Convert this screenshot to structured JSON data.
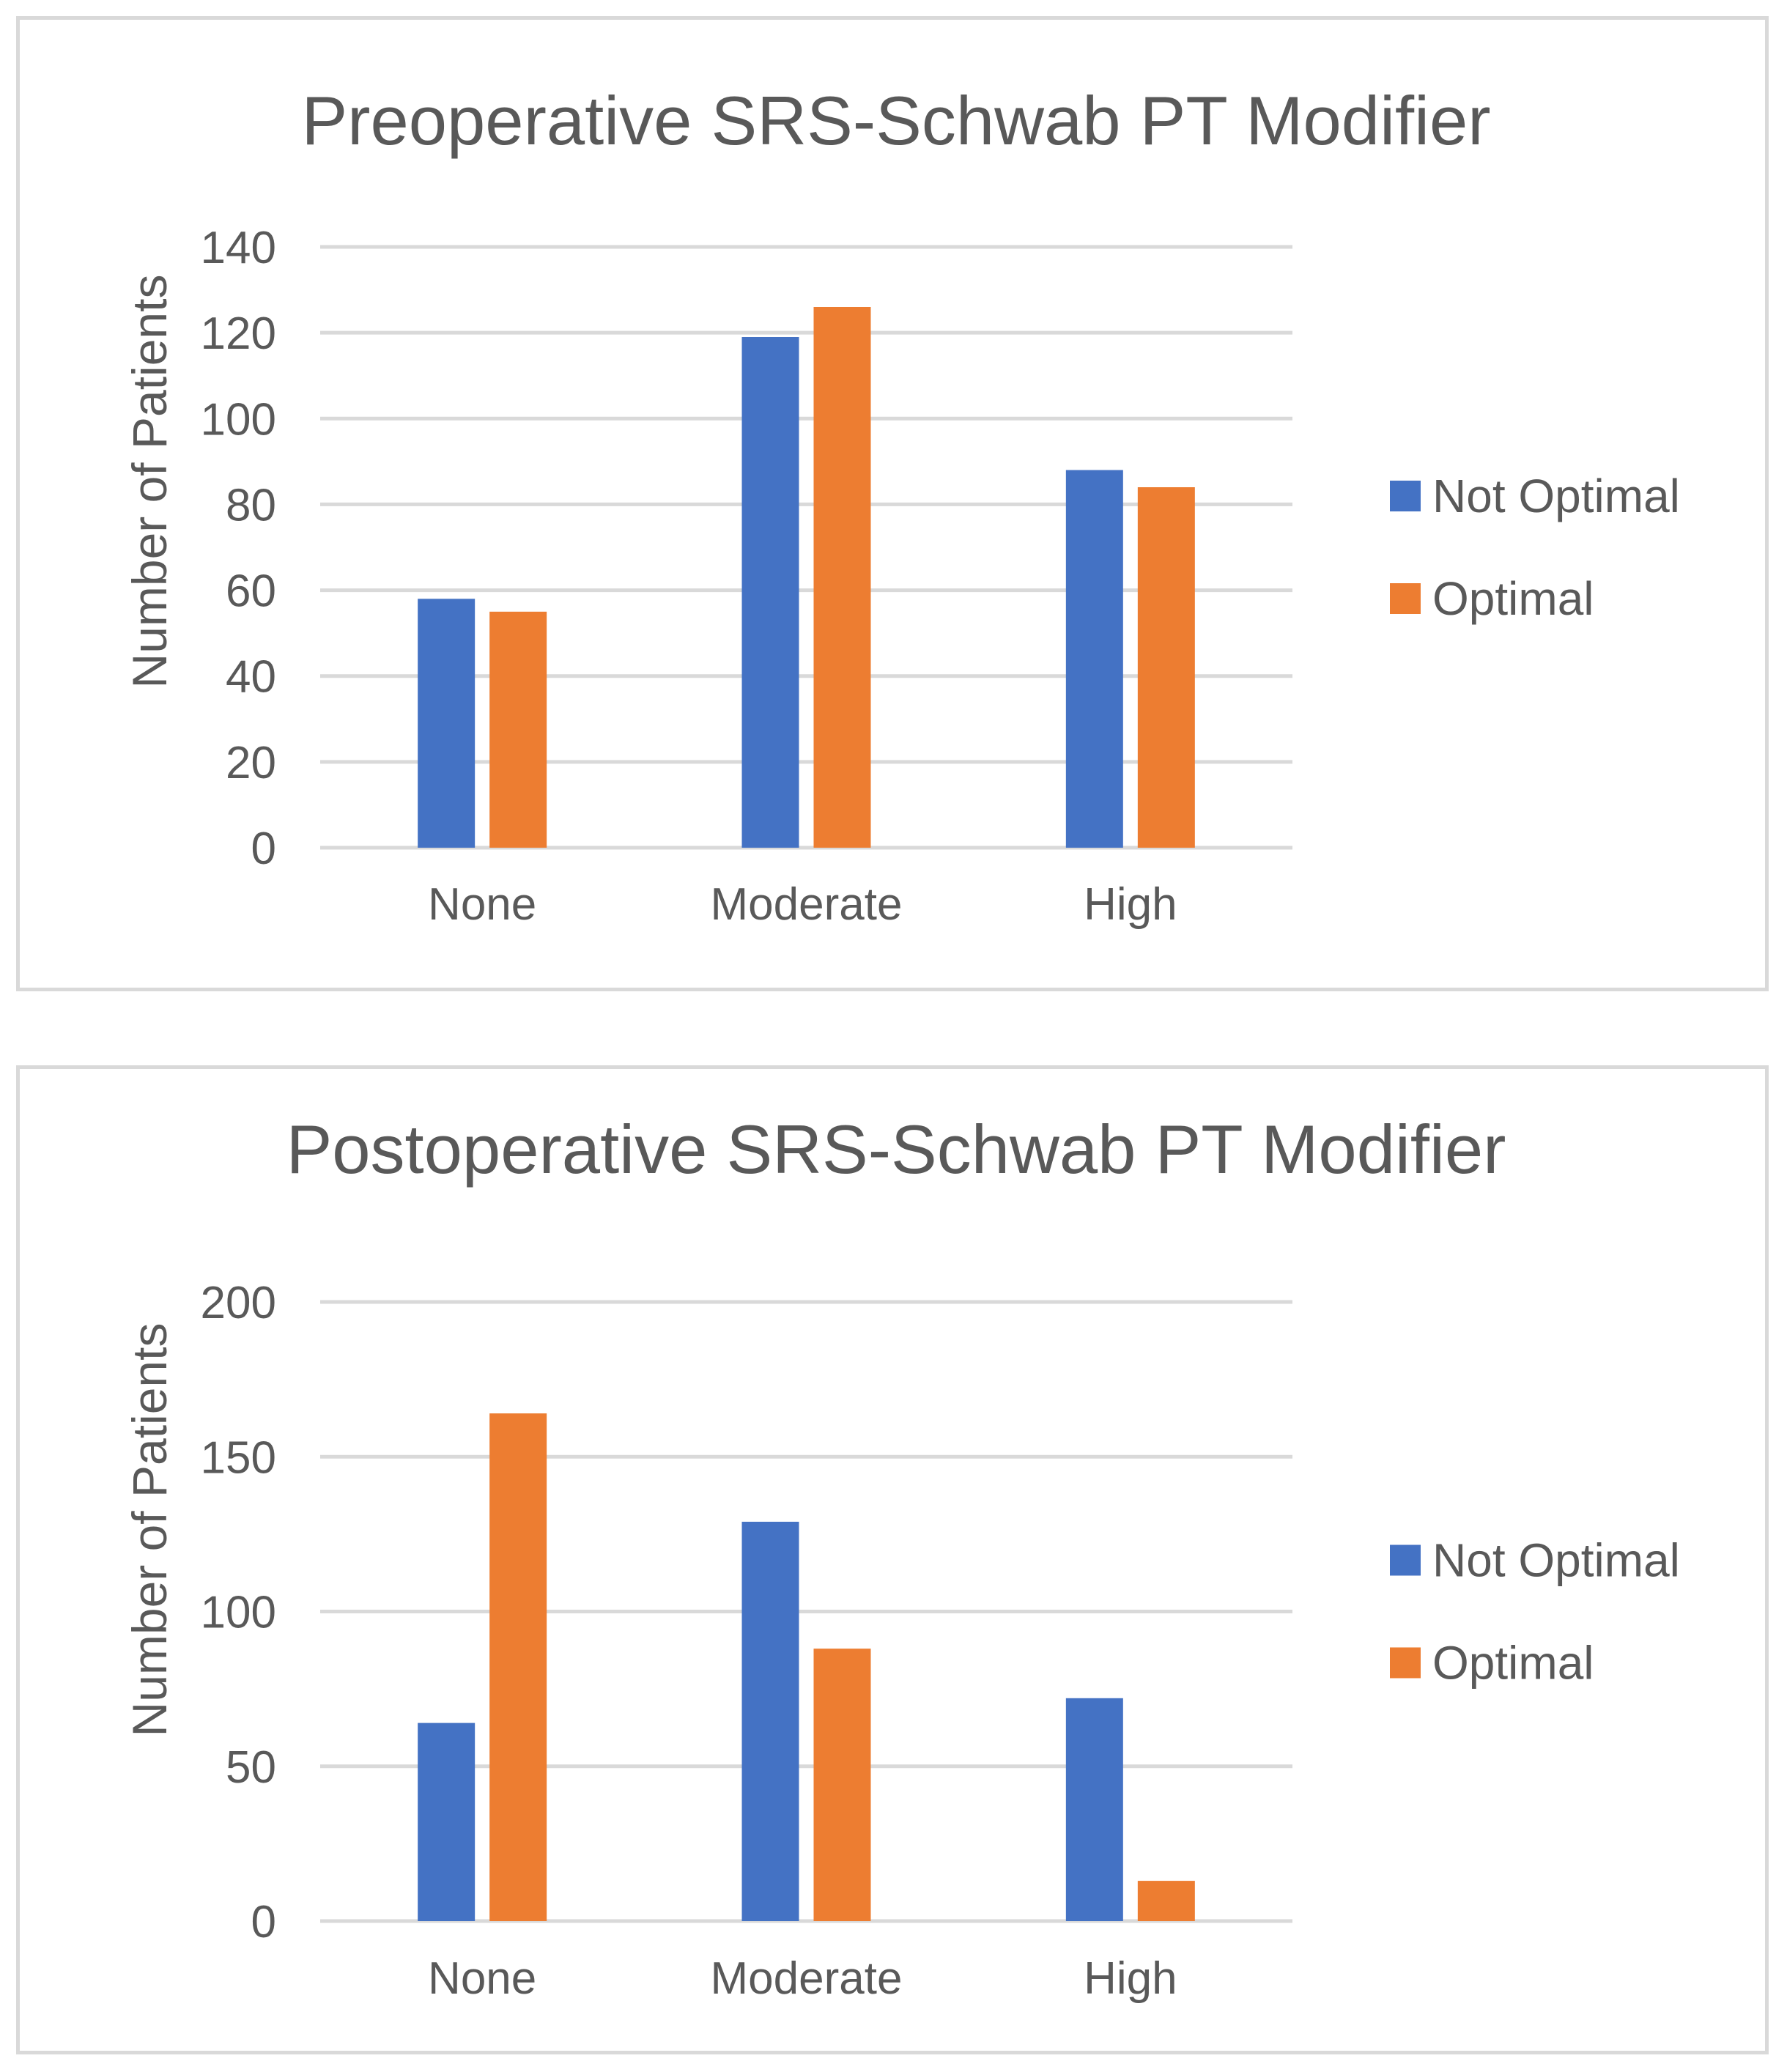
{
  "chart_data": [
    {
      "type": "bar",
      "title": "Preoperative SRS-Schwab PT Modifier",
      "xlabel": "",
      "ylabel": "Number of Patients",
      "categories": [
        "None",
        "Moderate",
        "High"
      ],
      "series": [
        {
          "name": "Not Optimal",
          "values": [
            58,
            119,
            88
          ],
          "color": "#4472C4"
        },
        {
          "name": "Optimal",
          "values": [
            55,
            126,
            84
          ],
          "color": "#ED7D31"
        }
      ],
      "ylim": [
        0,
        140
      ],
      "yticks": [
        "0",
        "20",
        "40",
        "60",
        "80",
        "100",
        "120",
        "140"
      ],
      "ytick_values": [
        0,
        20,
        40,
        60,
        80,
        100,
        120,
        140
      ],
      "grid": true,
      "legend": "right"
    },
    {
      "type": "bar",
      "title": "Postoperative SRS-Schwab PT Modifier",
      "xlabel": "",
      "ylabel": "Number of Patients",
      "categories": [
        "None",
        "Moderate",
        "High"
      ],
      "series": [
        {
          "name": "Not Optimal",
          "values": [
            64,
            129,
            72
          ],
          "color": "#4472C4"
        },
        {
          "name": "Optimal",
          "values": [
            164,
            88,
            13
          ],
          "color": "#ED7D31"
        }
      ],
      "ylim": [
        0,
        200
      ],
      "yticks": [
        "0",
        "50",
        "100",
        "150",
        "200"
      ],
      "ytick_values": [
        0,
        50,
        100,
        150,
        200
      ],
      "grid": true,
      "legend": "right"
    }
  ]
}
